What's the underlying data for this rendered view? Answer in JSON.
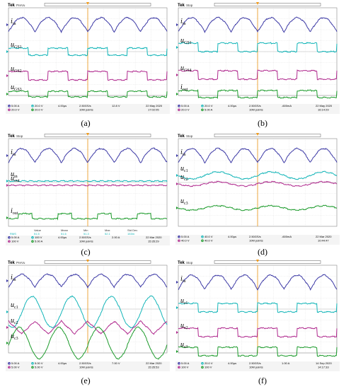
{
  "figure": {
    "captions": [
      "(a)",
      "(b)",
      "(c)",
      "(d)",
      "(e)",
      "(f)"
    ]
  },
  "colors": {
    "ch1": "#3d3aa6",
    "ch2": "#13b5b8",
    "ch3": "#b02a8e",
    "ch4": "#1d9b2c",
    "grid": "#c9c9c9",
    "frame": "#888888"
  },
  "chart_data": [
    {
      "type": "line",
      "panel": "a",
      "header": {
        "brand": "Tek",
        "mode": "PreVu"
      },
      "signal_labels": [
        "i_in",
        "u_GS1",
        "u_GS2",
        "u_GS3"
      ],
      "series": [
        {
          "name": "i_in",
          "shape": "rect_sine",
          "cycles": 6
        },
        {
          "name": "u_GS1",
          "shape": "square",
          "cycles": 4
        },
        {
          "name": "u_GS2",
          "shape": "square",
          "cycles": 4
        },
        {
          "name": "u_GS3",
          "shape": "square",
          "cycles": 4
        }
      ],
      "readout": {
        "ch_scales": [
          "5.00 A",
          "20.0 V",
          "20.0 V",
          "20.0 V"
        ],
        "timebase": "4.00μs",
        "sample_rate": "2.50GS/s",
        "record": "10M points",
        "trigger": "12.8 V",
        "date": "22 May 2020",
        "time": "17:02:05"
      }
    },
    {
      "type": "line",
      "panel": "b",
      "header": {
        "brand": "Tek",
        "mode": "Stop"
      },
      "signal_labels": [
        "i_in",
        "u_GS1",
        "u_GS4",
        "i_out"
      ],
      "series": [
        {
          "name": "i_in",
          "shape": "rect_sine",
          "cycles": 6
        },
        {
          "name": "u_GS1",
          "shape": "square",
          "cycles": 4
        },
        {
          "name": "u_GS4",
          "shape": "square",
          "cycles": 4
        },
        {
          "name": "i_out",
          "shape": "square",
          "cycles": 4
        }
      ],
      "readout": {
        "ch_scales": [
          "5.00 A",
          "20.0 V",
          "20.0 V",
          "5.00 A"
        ],
        "timebase": "4.00μs",
        "sample_rate": "2.50GS/s",
        "record": "10M points",
        "trigger": "-600mA",
        "date": "22 May 2020",
        "time": "16:14:29"
      }
    },
    {
      "type": "line",
      "panel": "c",
      "header": {
        "brand": "Tek",
        "mode": "Stop"
      },
      "signal_labels": [
        "i_in",
        "u_in",
        "u_out",
        "i_out"
      ],
      "series": [
        {
          "name": "i_in",
          "shape": "rect_sine",
          "cycles": 6
        },
        {
          "name": "u_in",
          "shape": "flat",
          "cycles": 0
        },
        {
          "name": "u_out",
          "shape": "flat",
          "cycles": 0
        },
        {
          "name": "i_out",
          "shape": "pulse",
          "cycles": 4
        }
      ],
      "readout": {
        "ch_scales": [
          "5.00 A",
          "100 V",
          "100 V",
          "5.00 A"
        ],
        "timebase": "4.00μs",
        "sample_rate": "2.50GS/s",
        "record": "10M points",
        "trigger": "2.00 A",
        "date": "22 Mar 2020",
        "time": "15:35:29"
      },
      "measure_table": {
        "headers": [
          "",
          "Value",
          "Mean",
          "Min",
          "Max",
          "Std Dev"
        ],
        "rows": [
          [
            "RMS",
            "51.5",
            "51.6",
            "51.3",
            "52.1",
            "153m"
          ],
          [
            "RMS",
            "158 V",
            "158",
            "157",
            "158",
            "663m"
          ]
        ]
      }
    },
    {
      "type": "line",
      "panel": "d",
      "header": {
        "brand": "Tek",
        "mode": "Stop"
      },
      "signal_labels": [
        "i_in",
        "u_c1",
        "u_c2",
        "u_c3"
      ],
      "series": [
        {
          "name": "i_in",
          "shape": "rect_sine",
          "cycles": 6
        },
        {
          "name": "u_c1",
          "shape": "slow_sine",
          "cycles": 3
        },
        {
          "name": "u_c2",
          "shape": "slow_sine",
          "cycles": 3
        },
        {
          "name": "u_c3",
          "shape": "slow_sine",
          "cycles": 3
        }
      ],
      "readout": {
        "ch_scales": [
          "5.00 A",
          "40.0 V",
          "40.0 V",
          "40.0 V"
        ],
        "timebase": "4.00μs",
        "sample_rate": "2.50GS/s",
        "record": "10M points",
        "trigger": "-600mA",
        "date": "22 Mar 2020",
        "time": "10:44:47"
      }
    },
    {
      "type": "line",
      "panel": "e",
      "header": {
        "brand": "Tek",
        "mode": "PreVu"
      },
      "signal_labels": [
        "i_in",
        "u_c1",
        "u_c2",
        "u_c3"
      ],
      "series": [
        {
          "name": "i_in",
          "shape": "rect_sine",
          "cycles": 6
        },
        {
          "name": "u_c1",
          "shape": "sine",
          "cycles": 4
        },
        {
          "name": "u_c2",
          "shape": "tri",
          "cycles": 6
        },
        {
          "name": "u_c3",
          "shape": "sine",
          "cycles": 4
        }
      ],
      "readout": {
        "ch_scales": [
          "5.00 A",
          "5.00 V",
          "5.00 V",
          "5.00 V"
        ],
        "timebase": "4.00μs",
        "sample_rate": "2.50GS/s",
        "record": "10M points",
        "trigger": "7.00 V",
        "date": "22 Mar 2020",
        "time": "15:35:53"
      }
    },
    {
      "type": "line",
      "panel": "f",
      "header": {
        "brand": "Tek",
        "mode": "Stop"
      },
      "signal_labels": [
        "i_in",
        "u_s1",
        "u_s2",
        "u_s3"
      ],
      "series": [
        {
          "name": "i_in",
          "shape": "rect_sine",
          "cycles": 6
        },
        {
          "name": "u_s1",
          "shape": "square",
          "cycles": 4
        },
        {
          "name": "u_s2",
          "shape": "square",
          "cycles": 4
        },
        {
          "name": "u_s3",
          "shape": "square",
          "cycles": 4
        }
      ],
      "readout": {
        "ch_scales": [
          "5.00 A",
          "20.0 V",
          "100 V",
          "100 V"
        ],
        "timebase": "4.00μs",
        "sample_rate": "2.50GS/s",
        "record": "10M points",
        "trigger": "1.00 A",
        "date": "14 Sep 2020",
        "time": "14:17:33"
      }
    }
  ]
}
